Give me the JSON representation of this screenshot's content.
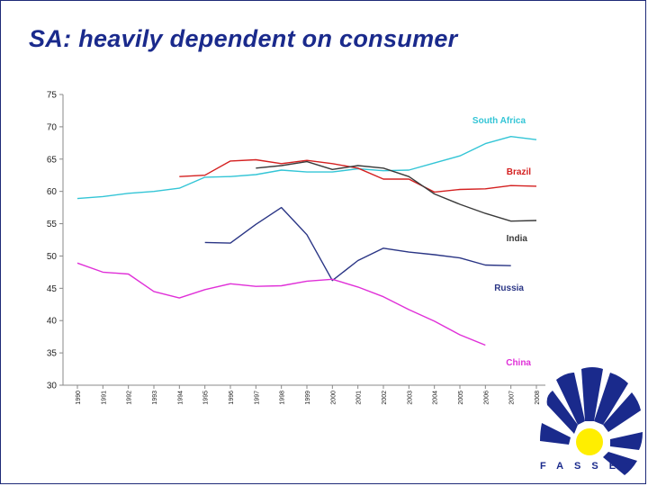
{
  "slide": {
    "title": "SA: heavily dependent on consumer",
    "logo_text": "FASSET",
    "colors": {
      "title": "#1a2a8c",
      "frame": "#1e2a78",
      "logo_blue": "#1a2a8c",
      "logo_sun": "#ffee00"
    }
  },
  "chart_data": {
    "type": "line",
    "title": "",
    "xlabel": "",
    "ylabel": "",
    "ylim": [
      30,
      75
    ],
    "yticks": [
      30,
      35,
      40,
      45,
      50,
      55,
      60,
      65,
      70,
      75
    ],
    "grid": false,
    "legend": "inline-labels-right",
    "x": [
      "1990",
      "1991",
      "1992",
      "1993",
      "1994",
      "1995",
      "1996",
      "1997",
      "1998",
      "1999",
      "2000",
      "2001",
      "2002",
      "2003",
      "2004",
      "2005",
      "2006",
      "2007",
      "2008"
    ],
    "series": [
      {
        "name": "South Africa",
        "color": "#33c5d6",
        "values": [
          58.9,
          59.2,
          59.7,
          60.0,
          60.5,
          62.2,
          62.3,
          62.6,
          63.3,
          63.0,
          63.0,
          63.5,
          63.2,
          63.3,
          64.4,
          65.5,
          67.4,
          68.5,
          68.0
        ]
      },
      {
        "name": "Brazil",
        "color": "#d42020",
        "values": [
          null,
          null,
          null,
          null,
          62.3,
          62.5,
          64.7,
          64.9,
          64.3,
          64.8,
          64.3,
          63.6,
          61.9,
          61.9,
          59.9,
          60.3,
          60.4,
          60.9,
          60.8
        ]
      },
      {
        "name": "India",
        "color": "#3a3a3a",
        "values": [
          null,
          null,
          null,
          null,
          null,
          null,
          null,
          63.6,
          64.0,
          64.6,
          63.4,
          64.0,
          63.6,
          62.3,
          59.6,
          58.0,
          56.6,
          55.4,
          55.5
        ]
      },
      {
        "name": "Russia",
        "color": "#2a3585",
        "values": [
          null,
          null,
          null,
          null,
          null,
          52.1,
          52.0,
          54.9,
          57.5,
          53.3,
          46.2,
          49.3,
          51.2,
          50.6,
          50.2,
          49.7,
          48.6,
          48.5,
          null
        ]
      },
      {
        "name": "China",
        "color": "#e030d8",
        "values": [
          48.9,
          47.5,
          47.2,
          44.5,
          43.5,
          44.8,
          45.7,
          45.3,
          45.4,
          46.1,
          46.4,
          45.2,
          43.7,
          41.7,
          39.9,
          37.8,
          36.2,
          null,
          null
        ]
      }
    ]
  }
}
